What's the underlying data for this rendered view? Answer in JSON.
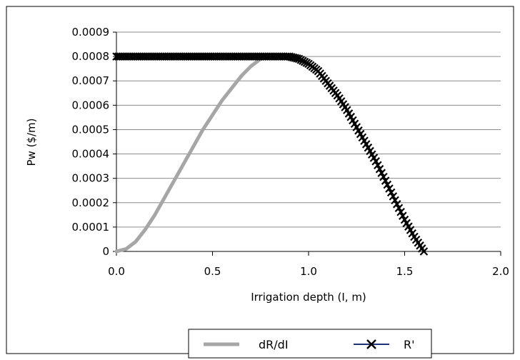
{
  "chart_data": {
    "type": "line",
    "title": "",
    "xlabel": "Irrigation depth (I, m)",
    "ylabel": "Pw ($/m)",
    "xlim": [
      0.0,
      2.0
    ],
    "ylim": [
      0,
      0.0009
    ],
    "x_ticks": [
      "0.0",
      "0.5",
      "1.0",
      "1.5",
      "2.0"
    ],
    "y_ticks": [
      "0",
      "0.0001",
      "0.0002",
      "0.0003",
      "0.0004",
      "0.0005",
      "0.0006",
      "0.0007",
      "0.0008",
      "0.0009"
    ],
    "grid": "horizontal",
    "legend_position": "bottom",
    "series": [
      {
        "name": "dR/dI",
        "color": "#a6a6a6",
        "marker": "none",
        "x": [
          0.0,
          0.05,
          0.1,
          0.15,
          0.2,
          0.25,
          0.3,
          0.35,
          0.4,
          0.45,
          0.5,
          0.55,
          0.6,
          0.65,
          0.7,
          0.75,
          0.8,
          0.85,
          0.9,
          0.95
        ],
        "y": [
          0.0,
          1e-05,
          4e-05,
          9e-05,
          0.00015,
          0.00022,
          0.00029,
          0.00036,
          0.00043,
          0.0005,
          0.00056,
          0.00062,
          0.00067,
          0.00072,
          0.00076,
          0.00079,
          0.0008,
          0.0008,
          0.0008,
          0.0008
        ]
      },
      {
        "name": "R'",
        "color": "#000000",
        "line_color": "#1f2f7a",
        "marker": "x",
        "x": [
          0.0,
          0.05,
          0.1,
          0.15,
          0.2,
          0.25,
          0.3,
          0.35,
          0.4,
          0.45,
          0.5,
          0.55,
          0.6,
          0.65,
          0.7,
          0.75,
          0.8,
          0.85,
          0.9,
          0.95,
          1.0,
          1.05,
          1.1,
          1.15,
          1.2,
          1.25,
          1.3,
          1.35,
          1.4,
          1.45,
          1.5,
          1.55,
          1.6
        ],
        "y": [
          0.0008,
          0.0008,
          0.0008,
          0.0008,
          0.0008,
          0.0008,
          0.0008,
          0.0008,
          0.0008,
          0.0008,
          0.0008,
          0.0008,
          0.0008,
          0.0008,
          0.0008,
          0.0008,
          0.0008,
          0.0008,
          0.0008,
          0.00079,
          0.00077,
          0.00074,
          0.00069,
          0.00064,
          0.00058,
          0.00051,
          0.00044,
          0.00037,
          0.00029,
          0.00021,
          0.00013,
          6e-05,
          0.0
        ]
      }
    ]
  }
}
